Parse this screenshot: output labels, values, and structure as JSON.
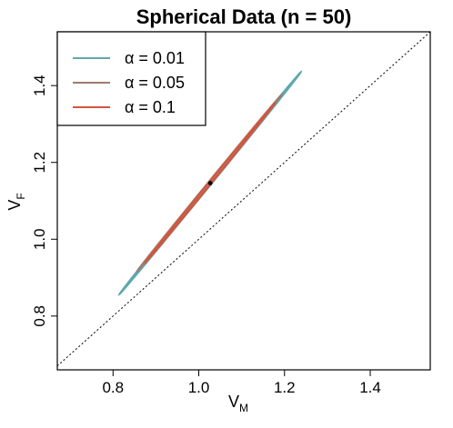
{
  "chart_data": {
    "type": "line",
    "title": "Spherical Data (n = 50)",
    "xlabel": {
      "main": "V",
      "sub": "M"
    },
    "ylabel": {
      "main": "V",
      "sub": "F"
    },
    "xlim": [
      0.67,
      1.54
    ],
    "ylim": [
      0.66,
      1.54
    ],
    "xticks": [
      "0.8",
      "1.0",
      "1.2",
      "1.4"
    ],
    "yticks": [
      "0.8",
      "1.0",
      "1.2",
      "1.4"
    ],
    "reference_line": {
      "style": "dotted",
      "slope": 1,
      "intercept": 0
    },
    "center_point": {
      "x": 1.027,
      "y": 1.146
    },
    "legend": {
      "position": "top-left",
      "entries": [
        {
          "label": "α = 0.01",
          "color": "#5fa8ad"
        },
        {
          "label": "α = 0.05",
          "color": "#9e7b6e"
        },
        {
          "label": "α = 0.1",
          "color": "#d4553c"
        }
      ]
    },
    "series": [
      {
        "name": "α = 0.01",
        "color": "#5fa8ad",
        "tip_low": {
          "x": 0.815,
          "y": 0.857
        },
        "tip_high": {
          "x": 1.238,
          "y": 1.435
        },
        "half_width": 0.0035
      },
      {
        "name": "α = 0.05",
        "color": "#9e7b6e",
        "tip_low": {
          "x": 0.857,
          "y": 0.918
        },
        "tip_high": {
          "x": 1.193,
          "y": 1.376
        },
        "half_width": 0.003
      },
      {
        "name": "α = 0.1",
        "color": "#d4553c",
        "tip_low": {
          "x": 0.875,
          "y": 0.939
        },
        "tip_high": {
          "x": 1.177,
          "y": 1.353
        },
        "half_width": 0.0028
      }
    ]
  }
}
